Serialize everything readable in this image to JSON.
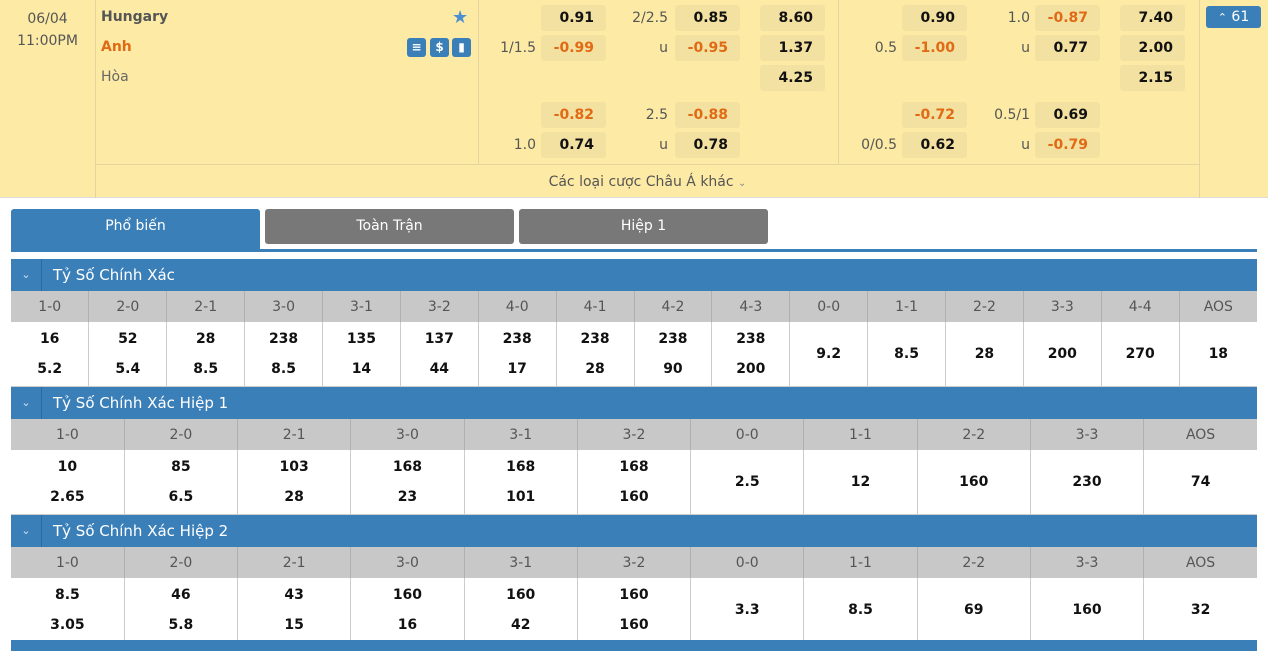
{
  "match": {
    "date": "06/04",
    "time": "11:00PM",
    "home": "Hungary",
    "away": "Anh",
    "draw": "Hòa",
    "count": "61",
    "more_label": "Các loại cược Châu Á khác",
    "more_icon": "chevron-down-icon"
  },
  "odds": {
    "ft_hdp_1": {
      "line": "1/1.5",
      "home": "0.91",
      "away": "-0.99"
    },
    "ft_ou_1": {
      "line": "2/2.5",
      "under_label": "u",
      "over": "0.85",
      "under": "-0.95"
    },
    "ft_1x2": {
      "home": "8.60",
      "away": "1.37",
      "draw": "4.25"
    },
    "ft_hdp_2": {
      "line": "1.0",
      "home": "-0.82",
      "away": "0.74"
    },
    "ft_ou_2": {
      "line": "2.5",
      "under_label": "u",
      "over": "-0.88",
      "under": "0.78"
    },
    "h1_hdp_1": {
      "line": "0.5",
      "home": "0.90",
      "away": "-1.00"
    },
    "h1_ou_1": {
      "line": "1.0",
      "under_label": "u",
      "over": "-0.87",
      "under": "0.77"
    },
    "h1_1x2": {
      "home": "7.40",
      "away": "2.00",
      "draw": "2.15"
    },
    "h1_hdp_2": {
      "line": "0/0.5",
      "home": "-0.72",
      "away": "0.62"
    },
    "h1_ou_2": {
      "line": "0.5/1",
      "under_label": "u",
      "over": "0.69",
      "under": "-0.79"
    }
  },
  "tabs": [
    {
      "label": "Phổ biến",
      "active": true
    },
    {
      "label": "Toàn Trận"
    },
    {
      "label": "Hiệp 1"
    }
  ],
  "sections": [
    {
      "title": "Tỷ Số Chính Xác",
      "cols": [
        {
          "h": "1-0",
          "v": [
            "16",
            "5.2"
          ]
        },
        {
          "h": "2-0",
          "v": [
            "52",
            "5.4"
          ]
        },
        {
          "h": "2-1",
          "v": [
            "28",
            "8.5"
          ]
        },
        {
          "h": "3-0",
          "v": [
            "238",
            "8.5"
          ]
        },
        {
          "h": "3-1",
          "v": [
            "135",
            "14"
          ]
        },
        {
          "h": "3-2",
          "v": [
            "137",
            "44"
          ]
        },
        {
          "h": "4-0",
          "v": [
            "238",
            "17"
          ]
        },
        {
          "h": "4-1",
          "v": [
            "238",
            "28"
          ]
        },
        {
          "h": "4-2",
          "v": [
            "238",
            "90"
          ]
        },
        {
          "h": "4-3",
          "v": [
            "238",
            "200"
          ]
        },
        {
          "h": "0-0",
          "v": [
            "9.2"
          ]
        },
        {
          "h": "1-1",
          "v": [
            "8.5"
          ]
        },
        {
          "h": "2-2",
          "v": [
            "28"
          ]
        },
        {
          "h": "3-3",
          "v": [
            "200"
          ]
        },
        {
          "h": "4-4",
          "v": [
            "270"
          ]
        },
        {
          "h": "AOS",
          "v": [
            "18"
          ]
        }
      ]
    },
    {
      "title": "Tỷ Số Chính Xác Hiệp 1",
      "cols": [
        {
          "h": "1-0",
          "v": [
            "10",
            "2.65"
          ]
        },
        {
          "h": "2-0",
          "v": [
            "85",
            "6.5"
          ]
        },
        {
          "h": "2-1",
          "v": [
            "103",
            "28"
          ]
        },
        {
          "h": "3-0",
          "v": [
            "168",
            "23"
          ]
        },
        {
          "h": "3-1",
          "v": [
            "168",
            "101"
          ]
        },
        {
          "h": "3-2",
          "v": [
            "168",
            "160"
          ]
        },
        {
          "h": "0-0",
          "v": [
            "2.5"
          ]
        },
        {
          "h": "1-1",
          "v": [
            "12"
          ]
        },
        {
          "h": "2-2",
          "v": [
            "160"
          ]
        },
        {
          "h": "3-3",
          "v": [
            "230"
          ]
        },
        {
          "h": "AOS",
          "v": [
            "74"
          ]
        }
      ]
    },
    {
      "title": "Tỷ Số Chính Xác Hiệp 2",
      "cols": [
        {
          "h": "1-0",
          "v": [
            "8.5",
            "3.05"
          ]
        },
        {
          "h": "2-0",
          "v": [
            "46",
            "5.8"
          ]
        },
        {
          "h": "2-1",
          "v": [
            "43",
            "15"
          ]
        },
        {
          "h": "3-0",
          "v": [
            "160",
            "16"
          ]
        },
        {
          "h": "3-1",
          "v": [
            "160",
            "42"
          ]
        },
        {
          "h": "3-2",
          "v": [
            "160",
            "160"
          ]
        },
        {
          "h": "0-0",
          "v": [
            "3.3"
          ]
        },
        {
          "h": "1-1",
          "v": [
            "8.5"
          ]
        },
        {
          "h": "2-2",
          "v": [
            "69"
          ]
        },
        {
          "h": "3-3",
          "v": [
            "160"
          ]
        },
        {
          "h": "AOS",
          "v": [
            "32"
          ]
        }
      ]
    }
  ],
  "colors": {
    "accent": "#3a7fb8",
    "negative": "#e06a15",
    "top_bg": "#fdeba5",
    "tab_inactive": "#787878"
  }
}
